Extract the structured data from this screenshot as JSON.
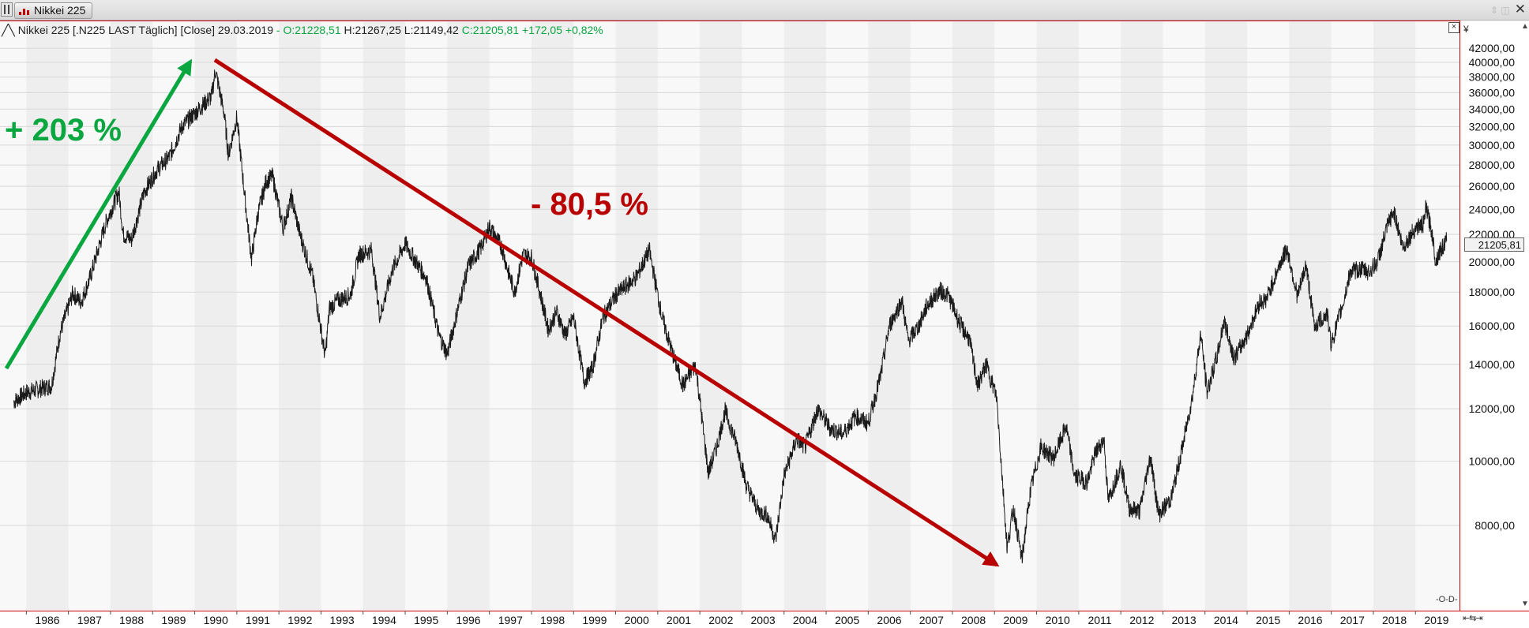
{
  "window": {
    "tab_label": "Nikkei 225",
    "currency_symbol": "¥"
  },
  "header": {
    "instrument": "Nikkei 225 [.N225 LAST Täglich] [Close] 29.03.2019",
    "separator": "-",
    "open": "O:21228,51",
    "high": "H:21267,25",
    "low": "L:21149,42",
    "close_change": "C:21205,81 +172,05 +0,82%"
  },
  "annotations": {
    "gain": "+ 203 %",
    "loss": "- 80,5 %"
  },
  "last_price_label": "21205,81",
  "colors": {
    "gain": "#0aa640",
    "loss": "#b80000",
    "line": "#1a1a1a",
    "axis_border": "#d00000"
  },
  "chart_data": {
    "type": "line",
    "title": "",
    "xlabel": "",
    "ylabel": "",
    "y_scale": "log",
    "ylim": [
      6000,
      45000
    ],
    "xlim": [
      1985.2,
      2019.5
    ],
    "grid": true,
    "x_ticks": [
      1986,
      1987,
      1988,
      1989,
      1990,
      1991,
      1992,
      1993,
      1994,
      1995,
      1996,
      1997,
      1998,
      1999,
      2000,
      2001,
      2002,
      2003,
      2004,
      2005,
      2006,
      2007,
      2008,
      2009,
      2010,
      2011,
      2012,
      2013,
      2014,
      2015,
      2016,
      2017,
      2018,
      2019
    ],
    "y_ticks": [
      "42000,00",
      "40000,00",
      "38000,00",
      "36000,00",
      "34000,00",
      "32000,00",
      "30000,00",
      "28000,00",
      "26000,00",
      "24000,00",
      "22000,00",
      "20000,00",
      "18000,00",
      "16000,00",
      "14000,00",
      "12000,00",
      "10000,00",
      "8000,00"
    ],
    "series": [
      {
        "values": [
          [
            1985.2,
            12300
          ],
          [
            1985.5,
            12700
          ],
          [
            1985.9,
            12900
          ],
          [
            1986.1,
            13000
          ],
          [
            1986.3,
            15600
          ],
          [
            1986.6,
            17900
          ],
          [
            1986.8,
            17400
          ],
          [
            1987.0,
            18800
          ],
          [
            1987.4,
            23000
          ],
          [
            1987.7,
            25500
          ],
          [
            1987.8,
            22000
          ],
          [
            1988.0,
            21600
          ],
          [
            1988.3,
            25500
          ],
          [
            1988.6,
            27500
          ],
          [
            1988.9,
            28800
          ],
          [
            1989.2,
            32000
          ],
          [
            1989.6,
            34000
          ],
          [
            1989.9,
            35500
          ],
          [
            1989.99,
            38900
          ],
          [
            1990.2,
            33500
          ],
          [
            1990.3,
            29000
          ],
          [
            1990.5,
            33000
          ],
          [
            1990.75,
            23000
          ],
          [
            1990.85,
            20200
          ],
          [
            1991.0,
            23600
          ],
          [
            1991.2,
            26500
          ],
          [
            1991.35,
            26900
          ],
          [
            1991.6,
            22500
          ],
          [
            1991.8,
            25000
          ],
          [
            1992.0,
            22000
          ],
          [
            1992.3,
            19000
          ],
          [
            1992.6,
            14400
          ],
          [
            1992.7,
            17000
          ],
          [
            1992.9,
            17500
          ],
          [
            1993.2,
            17800
          ],
          [
            1993.4,
            20500
          ],
          [
            1993.7,
            20800
          ],
          [
            1993.9,
            16500
          ],
          [
            1994.2,
            19500
          ],
          [
            1994.5,
            21300
          ],
          [
            1994.8,
            19800
          ],
          [
            1995.0,
            18900
          ],
          [
            1995.3,
            15500
          ],
          [
            1995.5,
            14500
          ],
          [
            1995.8,
            17500
          ],
          [
            1996.0,
            19700
          ],
          [
            1996.3,
            21000
          ],
          [
            1996.5,
            22600
          ],
          [
            1996.8,
            21000
          ],
          [
            1996.95,
            19300
          ],
          [
            1997.1,
            18000
          ],
          [
            1997.3,
            20500
          ],
          [
            1997.5,
            20300
          ],
          [
            1997.7,
            18000
          ],
          [
            1997.9,
            15800
          ],
          [
            1998.1,
            16800
          ],
          [
            1998.3,
            15500
          ],
          [
            1998.5,
            16500
          ],
          [
            1998.75,
            13200
          ],
          [
            1998.95,
            13800
          ],
          [
            1999.2,
            16500
          ],
          [
            1999.5,
            17800
          ],
          [
            1999.8,
            18500
          ],
          [
            2000.0,
            19000
          ],
          [
            2000.3,
            20800
          ],
          [
            2000.6,
            16500
          ],
          [
            2000.9,
            14200
          ],
          [
            2001.1,
            13000
          ],
          [
            2001.4,
            14000
          ],
          [
            2001.7,
            9600
          ],
          [
            2001.9,
            10500
          ],
          [
            2002.1,
            11900
          ],
          [
            2002.4,
            10500
          ],
          [
            2002.6,
            9200
          ],
          [
            2002.9,
            8400
          ],
          [
            2003.1,
            8300
          ],
          [
            2003.3,
            7600
          ],
          [
            2003.5,
            9500
          ],
          [
            2003.8,
            10800
          ],
          [
            2004.0,
            10500
          ],
          [
            2004.3,
            12000
          ],
          [
            2004.6,
            11200
          ],
          [
            2004.9,
            11000
          ],
          [
            2005.2,
            11700
          ],
          [
            2005.5,
            11400
          ],
          [
            2005.8,
            13500
          ],
          [
            2006.0,
            16000
          ],
          [
            2006.3,
            17500
          ],
          [
            2006.45,
            15200
          ],
          [
            2006.7,
            16000
          ],
          [
            2006.9,
            17200
          ],
          [
            2007.2,
            18100
          ],
          [
            2007.4,
            17800
          ],
          [
            2007.7,
            16000
          ],
          [
            2007.9,
            15300
          ],
          [
            2008.1,
            13000
          ],
          [
            2008.3,
            14000
          ],
          [
            2008.55,
            12500
          ],
          [
            2008.8,
            7400
          ],
          [
            2008.95,
            8500
          ],
          [
            2009.15,
            7100
          ],
          [
            2009.35,
            9000
          ],
          [
            2009.6,
            10500
          ],
          [
            2009.9,
            10100
          ],
          [
            2010.2,
            11300
          ],
          [
            2010.4,
            9500
          ],
          [
            2010.7,
            9300
          ],
          [
            2010.9,
            10300
          ],
          [
            2011.1,
            10800
          ],
          [
            2011.2,
            8700
          ],
          [
            2011.5,
            9900
          ],
          [
            2011.7,
            8500
          ],
          [
            2011.95,
            8400
          ],
          [
            2012.2,
            10200
          ],
          [
            2012.4,
            8300
          ],
          [
            2012.7,
            8800
          ],
          [
            2012.95,
            10400
          ],
          [
            2013.2,
            12500
          ],
          [
            2013.4,
            15600
          ],
          [
            2013.55,
            12700
          ],
          [
            2013.8,
            14500
          ],
          [
            2013.95,
            16300
          ],
          [
            2014.2,
            14300
          ],
          [
            2014.5,
            15500
          ],
          [
            2014.8,
            17400
          ],
          [
            2014.95,
            17500
          ],
          [
            2015.3,
            20000
          ],
          [
            2015.45,
            20900
          ],
          [
            2015.7,
            17700
          ],
          [
            2015.9,
            19800
          ],
          [
            2016.1,
            16000
          ],
          [
            2016.4,
            16700
          ],
          [
            2016.5,
            15000
          ],
          [
            2016.8,
            17500
          ],
          [
            2016.95,
            19300
          ],
          [
            2017.2,
            19500
          ],
          [
            2017.4,
            19300
          ],
          [
            2017.6,
            20000
          ],
          [
            2017.85,
            22800
          ],
          [
            2017.99,
            23800
          ],
          [
            2018.2,
            21000
          ],
          [
            2018.5,
            22500
          ],
          [
            2018.7,
            22800
          ],
          [
            2018.75,
            24200
          ],
          [
            2018.9,
            22000
          ],
          [
            2018.98,
            20000
          ],
          [
            2019.05,
            20600
          ],
          [
            2019.24,
            21500
          ]
        ]
      }
    ]
  }
}
